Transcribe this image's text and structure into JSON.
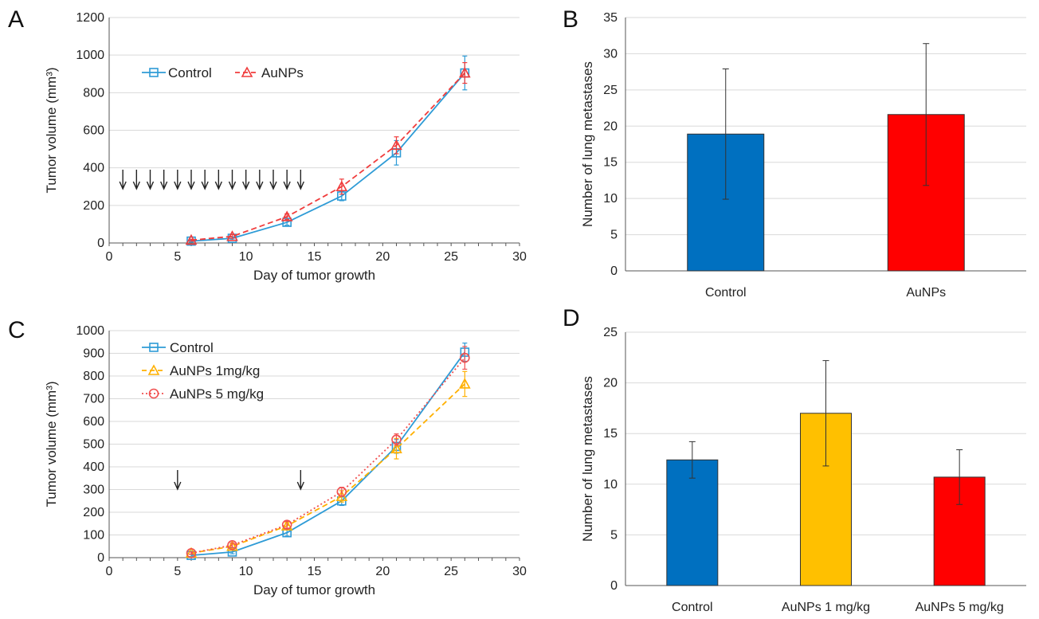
{
  "chart_data": [
    {
      "panel": "A",
      "type": "line",
      "xlabel": "Day of tumor growth",
      "ylabel": "Tumor volume (mm³)",
      "xlim": [
        0,
        30
      ],
      "ylim": [
        0,
        1200
      ],
      "xticks": [
        0,
        5,
        10,
        15,
        20,
        25,
        30
      ],
      "yticks": [
        0,
        200,
        400,
        600,
        800,
        1000,
        1200
      ],
      "x": [
        6,
        9,
        13,
        17,
        21,
        26
      ],
      "series": [
        {
          "name": "Control",
          "marker": "square",
          "dash": false,
          "color": "#2e9bd6",
          "values": [
            10,
            25,
            110,
            250,
            480,
            905
          ],
          "errors": [
            5,
            8,
            15,
            25,
            65,
            90
          ]
        },
        {
          "name": "AuNPs",
          "marker": "triangle",
          "dash": true,
          "color": "#f03c3c",
          "values": [
            15,
            35,
            140,
            300,
            520,
            905
          ],
          "errors": [
            5,
            10,
            15,
            40,
            45,
            55
          ]
        }
      ],
      "dosing_days": [
        1,
        2,
        3,
        4,
        5,
        6,
        7,
        8,
        9,
        10,
        11,
        12,
        13,
        14
      ],
      "legend_position": "top-left",
      "grid": true
    },
    {
      "panel": "B",
      "type": "bar",
      "categories": [
        "Control",
        "AuNPs"
      ],
      "values": [
        18.9,
        21.6
      ],
      "errors": [
        9.0,
        9.8
      ],
      "colors": [
        "#0070c0",
        "#ff0000"
      ],
      "ylabel": "Number of lung metastases",
      "xlabel": "",
      "ylim": [
        0,
        35
      ],
      "yticks": [
        0,
        5,
        10,
        15,
        20,
        25,
        30,
        35
      ],
      "grid": true
    },
    {
      "panel": "C",
      "type": "line",
      "xlabel": "Day of tumor growth",
      "ylabel": "Tumor volume (mm³)",
      "xlim": [
        0,
        30
      ],
      "ylim": [
        0,
        1000
      ],
      "xticks": [
        0,
        5,
        10,
        15,
        20,
        25,
        30
      ],
      "yticks": [
        0,
        100,
        200,
        300,
        400,
        500,
        600,
        700,
        800,
        900,
        1000
      ],
      "x": [
        6,
        9,
        13,
        17,
        21,
        26
      ],
      "series": [
        {
          "name": "Control",
          "marker": "square",
          "dash": false,
          "color": "#2e9bd6",
          "values": [
            10,
            25,
            110,
            250,
            490,
            905
          ],
          "errors": [
            5,
            8,
            15,
            20,
            30,
            40
          ]
        },
        {
          "name": "AuNPs 1mg/kg",
          "marker": "triangle",
          "dash": true,
          "color": "#ffb000",
          "values": [
            20,
            50,
            140,
            270,
            480,
            765
          ],
          "errors": [
            5,
            10,
            15,
            25,
            45,
            55
          ]
        },
        {
          "name": "AuNPs 5 mg/kg",
          "marker": "circle",
          "dash": "dot",
          "color": "#f05050",
          "values": [
            20,
            55,
            145,
            290,
            520,
            880
          ],
          "errors": [
            5,
            10,
            15,
            20,
            25,
            50
          ]
        }
      ],
      "dosing_days": [
        5,
        14
      ],
      "legend_position": "top-left",
      "grid": true
    },
    {
      "panel": "D",
      "type": "bar",
      "categories": [
        "Control",
        "AuNPs 1 mg/kg",
        "AuNPs 5 mg/kg"
      ],
      "values": [
        12.4,
        17.0,
        10.7
      ],
      "errors": [
        1.8,
        5.2,
        2.7
      ],
      "colors": [
        "#0070c0",
        "#ffc000",
        "#ff0000"
      ],
      "ylabel": "Number of lung metastases",
      "xlabel": "",
      "ylim": [
        0,
        25
      ],
      "yticks": [
        0,
        5,
        10,
        15,
        20,
        25
      ],
      "grid": true
    }
  ]
}
